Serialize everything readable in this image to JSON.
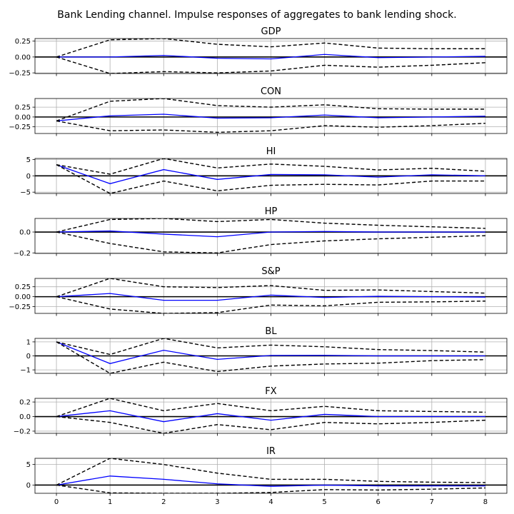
{
  "suptitle": "Bank Lending channel. Impulse responses of aggregates to bank lending shock.",
  "colors": {
    "response": "#0000ff",
    "bands": "#000000",
    "zero": "#000000",
    "grid": "#b0b0b0"
  },
  "chart_data": [
    {
      "type": "line",
      "title": "GDP",
      "x": [
        0,
        1,
        2,
        3,
        4,
        5,
        6,
        7,
        8
      ],
      "xlim": [
        -0.4,
        8.4
      ],
      "ylim": [
        -0.26,
        0.29
      ],
      "grid": true,
      "yticks": [
        -0.25,
        0.0,
        0.25
      ],
      "ytick_labels": [
        "−0.25",
        "0.00",
        "0.25"
      ],
      "series": [
        {
          "role": "response",
          "values": [
            0.0,
            0.0,
            0.025,
            -0.02,
            -0.03,
            0.04,
            -0.01,
            0.0,
            0.01
          ]
        },
        {
          "role": "upper",
          "values": [
            0.0,
            0.27,
            0.29,
            0.2,
            0.16,
            0.22,
            0.14,
            0.13,
            0.13
          ]
        },
        {
          "role": "lower",
          "values": [
            0.0,
            -0.26,
            -0.23,
            -0.25,
            -0.22,
            -0.13,
            -0.16,
            -0.13,
            -0.09
          ]
        }
      ]
    },
    {
      "type": "line",
      "title": "CON",
      "x": [
        0,
        1,
        2,
        3,
        4,
        5,
        6,
        7,
        8
      ],
      "xlim": [
        -0.4,
        8.4
      ],
      "ylim": [
        -0.42,
        0.47
      ],
      "grid": true,
      "yticks": [
        -0.25,
        0.0,
        0.25
      ],
      "ytick_labels": [
        "−0.25",
        "0.00",
        "0.25"
      ],
      "series": [
        {
          "role": "response",
          "values": [
            -0.1,
            0.03,
            0.07,
            -0.03,
            -0.02,
            0.05,
            -0.02,
            0.0,
            0.02
          ]
        },
        {
          "role": "upper",
          "values": [
            -0.1,
            0.4,
            0.47,
            0.29,
            0.25,
            0.31,
            0.21,
            0.2,
            0.2
          ]
        },
        {
          "role": "lower",
          "values": [
            -0.1,
            -0.35,
            -0.33,
            -0.39,
            -0.35,
            -0.22,
            -0.26,
            -0.22,
            -0.16
          ]
        }
      ]
    },
    {
      "type": "line",
      "title": "HI",
      "x": [
        0,
        1,
        2,
        3,
        4,
        5,
        6,
        7,
        8
      ],
      "xlim": [
        -0.4,
        8.4
      ],
      "ylim": [
        -5.4,
        5.3
      ],
      "grid": true,
      "yticks": [
        -5,
        0,
        5
      ],
      "ytick_labels": [
        "−5",
        "0",
        "5"
      ],
      "series": [
        {
          "role": "response",
          "values": [
            3.4,
            -2.4,
            1.9,
            -1.1,
            0.4,
            0.3,
            -0.4,
            0.3,
            0.0
          ]
        },
        {
          "role": "upper",
          "values": [
            3.4,
            0.5,
            5.3,
            2.4,
            3.6,
            2.9,
            1.8,
            2.3,
            1.4
          ]
        },
        {
          "role": "lower",
          "values": [
            3.4,
            -5.4,
            -1.6,
            -4.6,
            -2.9,
            -2.6,
            -2.8,
            -1.6,
            -1.6
          ]
        }
      ]
    },
    {
      "type": "line",
      "title": "HP",
      "x": [
        0,
        1,
        2,
        3,
        4,
        5,
        6,
        7,
        8
      ],
      "xlim": [
        -0.4,
        8.4
      ],
      "ylim": [
        -0.205,
        0.13
      ],
      "grid": true,
      "yticks": [
        -0.2,
        0.0
      ],
      "ytick_labels": [
        "−0.2",
        "0.0"
      ],
      "series": [
        {
          "role": "response",
          "values": [
            0.0,
            0.01,
            -0.02,
            -0.045,
            0.0,
            0.005,
            0.0,
            0.0,
            0.0
          ]
        },
        {
          "role": "upper",
          "values": [
            0.0,
            0.12,
            0.13,
            0.1,
            0.12,
            0.085,
            0.065,
            0.05,
            0.035
          ]
        },
        {
          "role": "lower",
          "values": [
            0.0,
            -0.11,
            -0.19,
            -0.2,
            -0.12,
            -0.085,
            -0.065,
            -0.05,
            -0.035
          ]
        }
      ]
    },
    {
      "type": "line",
      "title": "S&P",
      "x": [
        0,
        1,
        2,
        3,
        4,
        5,
        6,
        7,
        8
      ],
      "xlim": [
        -0.4,
        8.4
      ],
      "ylim": [
        -0.42,
        0.46
      ],
      "grid": true,
      "yticks": [
        -0.25,
        0.0,
        0.25
      ],
      "ytick_labels": [
        "−0.25",
        "0.00",
        "0.25"
      ],
      "series": [
        {
          "role": "response",
          "values": [
            0.0,
            0.08,
            -0.09,
            -0.09,
            0.04,
            -0.02,
            0.01,
            0.0,
            -0.01
          ]
        },
        {
          "role": "upper",
          "values": [
            0.0,
            0.46,
            0.25,
            0.23,
            0.28,
            0.16,
            0.17,
            0.13,
            0.09
          ]
        },
        {
          "role": "lower",
          "values": [
            0.0,
            -0.31,
            -0.42,
            -0.4,
            -0.21,
            -0.23,
            -0.14,
            -0.13,
            -0.11
          ]
        }
      ]
    },
    {
      "type": "line",
      "title": "BL",
      "x": [
        0,
        1,
        2,
        3,
        4,
        5,
        6,
        7,
        8
      ],
      "xlim": [
        -0.4,
        8.4
      ],
      "ylim": [
        -1.25,
        1.25
      ],
      "grid": true,
      "yticks": [
        -1,
        0,
        1
      ],
      "ytick_labels": [
        "−1",
        "0",
        "1"
      ],
      "series": [
        {
          "role": "response",
          "values": [
            1.0,
            -0.55,
            0.4,
            -0.25,
            0.03,
            0.04,
            0.0,
            0.0,
            0.0
          ]
        },
        {
          "role": "upper",
          "values": [
            1.0,
            0.1,
            1.25,
            0.57,
            0.77,
            0.65,
            0.45,
            0.38,
            0.27
          ]
        },
        {
          "role": "lower",
          "values": [
            1.0,
            -1.25,
            -0.45,
            -1.12,
            -0.73,
            -0.58,
            -0.52,
            -0.34,
            -0.27
          ]
        }
      ]
    },
    {
      "type": "line",
      "title": "FX",
      "x": [
        0,
        1,
        2,
        3,
        4,
        5,
        6,
        7,
        8
      ],
      "xlim": [
        -0.4,
        8.4
      ],
      "ylim": [
        -0.23,
        0.25
      ],
      "grid": true,
      "yticks": [
        -0.2,
        0.0,
        0.2
      ],
      "ytick_labels": [
        "−0.2",
        "0.0",
        "0.2"
      ],
      "series": [
        {
          "role": "response",
          "values": [
            0.0,
            0.08,
            -0.07,
            0.04,
            -0.05,
            0.03,
            0.0,
            0.0,
            0.0
          ]
        },
        {
          "role": "upper",
          "values": [
            0.0,
            0.25,
            0.08,
            0.18,
            0.08,
            0.14,
            0.08,
            0.07,
            0.06
          ]
        },
        {
          "role": "lower",
          "values": [
            0.0,
            -0.08,
            -0.23,
            -0.11,
            -0.18,
            -0.08,
            -0.1,
            -0.08,
            -0.05
          ]
        }
      ]
    },
    {
      "type": "line",
      "title": "IR",
      "x": [
        0,
        1,
        2,
        3,
        4,
        5,
        6,
        7,
        8
      ],
      "xlim": [
        -0.4,
        8.4
      ],
      "ylim": [
        -2.0,
        6.5
      ],
      "grid": true,
      "yticks": [
        0,
        5
      ],
      "ytick_labels": [
        "0",
        "5"
      ],
      "xticks": [
        0,
        1,
        2,
        3,
        4,
        5,
        6,
        7,
        8
      ],
      "xtick_labels": [
        "0",
        "1",
        "2",
        "3",
        "4",
        "5",
        "6",
        "7",
        "8"
      ],
      "series": [
        {
          "role": "response",
          "values": [
            0.0,
            2.2,
            1.4,
            0.3,
            -0.3,
            0.0,
            -0.2,
            -0.2,
            -0.2
          ]
        },
        {
          "role": "upper",
          "values": [
            0.0,
            6.5,
            5.0,
            2.9,
            1.4,
            1.4,
            0.9,
            0.7,
            0.6
          ]
        },
        {
          "role": "lower",
          "values": [
            0.0,
            -1.9,
            -2.0,
            -2.0,
            -1.8,
            -1.1,
            -1.2,
            -1.0,
            -0.7
          ]
        }
      ]
    }
  ]
}
